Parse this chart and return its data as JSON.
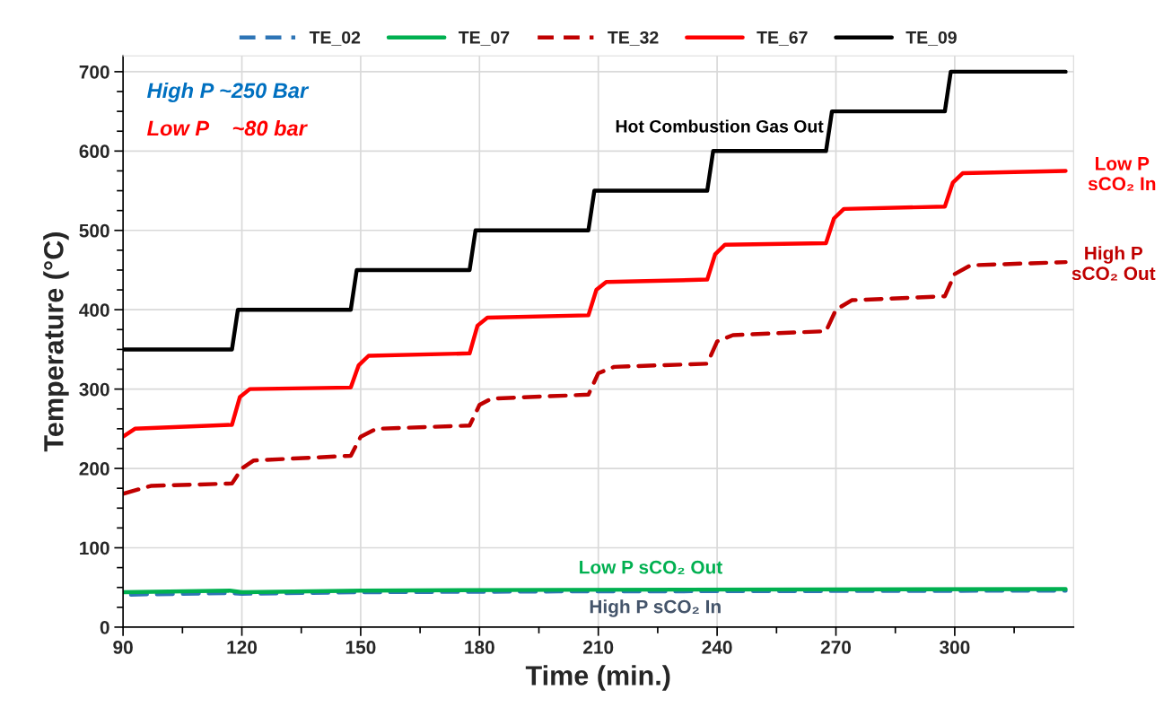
{
  "chart_data": {
    "type": "line",
    "xlabel": "Time (min.)",
    "ylabel": "Temperature (°C)",
    "xlim": [
      90,
      330
    ],
    "ylim": [
      0,
      720
    ],
    "xticks": [
      90,
      {
        "value": 105,
        "label": null
      },
      120,
      {
        "value": 135,
        "label": null
      },
      150,
      {
        "value": 165,
        "label": null
      },
      180,
      {
        "value": 195,
        "label": null
      },
      210,
      {
        "value": 225,
        "label": null
      },
      240,
      {
        "value": 255,
        "label": null
      },
      270,
      {
        "value": 285,
        "label": null
      },
      300,
      {
        "value": 315,
        "label": null
      }
    ],
    "yticks": [
      0,
      {
        "value": 25,
        "label": null
      },
      {
        "value": 50,
        "label": null
      },
      {
        "value": 75,
        "label": null
      },
      100,
      {
        "value": 125,
        "label": null
      },
      {
        "value": 150,
        "label": null
      },
      {
        "value": 175,
        "label": null
      },
      200,
      {
        "value": 225,
        "label": null
      },
      {
        "value": 250,
        "label": null
      },
      {
        "value": 275,
        "label": null
      },
      300,
      {
        "value": 325,
        "label": null
      },
      {
        "value": 350,
        "label": null
      },
      {
        "value": 375,
        "label": null
      },
      400,
      {
        "value": 425,
        "label": null
      },
      {
        "value": 450,
        "label": null
      },
      {
        "value": 475,
        "label": null
      },
      500,
      {
        "value": 525,
        "label": null
      },
      {
        "value": 550,
        "label": null
      },
      {
        "value": 575,
        "label": null
      },
      600,
      {
        "value": 625,
        "label": null
      },
      {
        "value": 650,
        "label": null
      },
      {
        "value": 675,
        "label": null
      },
      700
    ],
    "grid": true,
    "legend": "top",
    "marker": "none",
    "series": [
      {
        "name": "TE_02",
        "color": "#2e75b6",
        "line_style": "dashed",
        "x": [
          92,
          117,
          120,
          150,
          200,
          328
        ],
        "values": [
          41,
          43,
          42,
          44,
          45,
          46
        ]
      },
      {
        "name": "TE_07",
        "color": "#00b050",
        "line_style": "solid",
        "x": [
          90,
          117,
          120,
          150,
          200,
          328
        ],
        "values": [
          44,
          46,
          44,
          46,
          47,
          48
        ]
      },
      {
        "name": "TE_32",
        "color": "#c00000",
        "line_style": "dashed",
        "x": [
          90,
          97,
          117.5,
          120,
          123,
          147.5,
          150,
          154,
          177.5,
          180,
          183,
          207.5,
          210,
          214,
          237.5,
          240,
          244,
          267.5,
          270,
          274,
          297.5,
          300,
          304,
          328
        ],
        "values": [
          168,
          178,
          181,
          200,
          210,
          216,
          240,
          250,
          254,
          280,
          288,
          293,
          320,
          328,
          332,
          360,
          368,
          373,
          400,
          412,
          417,
          445,
          456,
          460
        ]
      },
      {
        "name": "TE_67",
        "color": "#ff0000",
        "line_style": "solid",
        "x": [
          90,
          93,
          117.5,
          119.5,
          122,
          147.5,
          149.5,
          152,
          177.5,
          179.5,
          182,
          207.5,
          209.5,
          212,
          237.5,
          239.5,
          242,
          267.5,
          269.5,
          272,
          297.5,
          299.5,
          302,
          328
        ],
        "values": [
          240,
          250,
          255,
          290,
          300,
          302,
          330,
          342,
          345,
          380,
          390,
          393,
          425,
          435,
          438,
          470,
          482,
          484,
          515,
          527,
          530,
          560,
          572,
          575
        ]
      },
      {
        "name": "TE_09",
        "color": "#000000",
        "line_style": "solid",
        "x": [
          90,
          117.5,
          119,
          147.5,
          149,
          177.5,
          179,
          207.5,
          209,
          237.5,
          239,
          267.5,
          269,
          297.5,
          299,
          328
        ],
        "values": [
          350,
          350,
          400,
          400,
          450,
          450,
          500,
          500,
          550,
          550,
          600,
          600,
          650,
          650,
          700,
          700
        ]
      }
    ],
    "annotations": [
      "High P ~250 Bar",
      "Low P    ~80 bar",
      "Hot Combustion Gas Out",
      "Low P\nsCO₂ In",
      "High P\nsCO₂ Out",
      "Low P sCO₂ Out",
      "High P sCO₂ In"
    ]
  }
}
